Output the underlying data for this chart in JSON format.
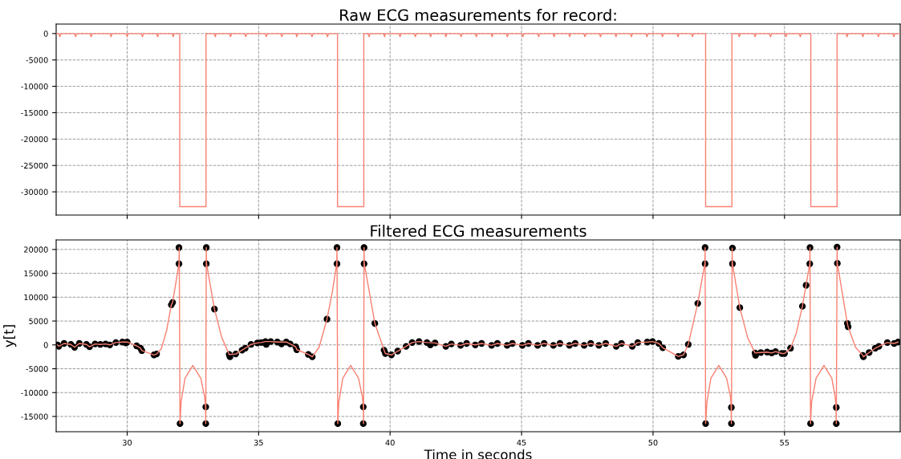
{
  "chart_data": [
    {
      "type": "line",
      "title": "Raw ECG measurements for record:",
      "xlim": [
        27.3,
        59.4
      ],
      "xticks": [
        30,
        35,
        40,
        45,
        50,
        55
      ],
      "ylim": [
        -34400,
        1800
      ],
      "yticks": [
        -30000,
        -25000,
        -20000,
        -15000,
        -10000,
        -5000,
        0
      ],
      "grid": true,
      "tick_labels": "y",
      "marker": "none",
      "series": [
        {
          "type": "line",
          "color": "#fa8072",
          "x": [
            27.3,
            27.4,
            27.44,
            27.48,
            28.0,
            28.04,
            28.08,
            28.59,
            28.63,
            28.67,
            29.35,
            29.39,
            29.43,
            29.96,
            30.0,
            30.04,
            30.54,
            30.58,
            30.62,
            31.12,
            31.16,
            31.2,
            31.71,
            31.75,
            31.79,
            32.0,
            32.0,
            33.0,
            33.0,
            33.31,
            33.35,
            33.39,
            33.89,
            33.93,
            33.97,
            34.47,
            34.51,
            34.55,
            35.25,
            35.29,
            35.33,
            35.84,
            35.88,
            35.92,
            36.41,
            36.45,
            36.49,
            36.99,
            37.03,
            37.07,
            37.58,
            37.62,
            37.66,
            38.0,
            38.0,
            39.0,
            39.0,
            39.16,
            39.2,
            39.24,
            39.75,
            39.79,
            39.83,
            40.34,
            40.38,
            40.42,
            40.92,
            40.96,
            41.0,
            41.5,
            41.54,
            41.58,
            42.08,
            42.12,
            42.16,
            42.66,
            42.7,
            42.74,
            43.24,
            43.28,
            43.32,
            43.84,
            43.88,
            43.92,
            44.42,
            44.46,
            44.5,
            45.01,
            45.05,
            45.09,
            45.61,
            45.65,
            45.69,
            46.2,
            46.24,
            46.28,
            46.79,
            46.83,
            46.87,
            47.37,
            47.41,
            47.45,
            47.96,
            48.0,
            48.04,
            48.55,
            48.59,
            48.63,
            49.14,
            49.18,
            49.22,
            49.73,
            49.77,
            49.81,
            50.32,
            50.36,
            50.4,
            50.91,
            50.95,
            50.99,
            51.46,
            51.5,
            51.54,
            52.0,
            52.0,
            53.0,
            53.0,
            53.24,
            53.28,
            53.32,
            53.84,
            53.88,
            53.92,
            54.43,
            54.47,
            54.51,
            55.02,
            55.06,
            55.1,
            55.56,
            55.6,
            55.64,
            56.0,
            56.0,
            57.0,
            57.0,
            57.34,
            57.38,
            57.42,
            57.94,
            57.98,
            58.02,
            58.53,
            58.57,
            58.61,
            59.12,
            59.16,
            59.2,
            59.4
          ],
          "values": [
            0,
            0,
            -600,
            0,
            0,
            -600,
            0,
            0,
            -600,
            0,
            0,
            -600,
            0,
            0,
            -600,
            0,
            0,
            -600,
            0,
            0,
            -600,
            0,
            0,
            -600,
            0,
            0,
            -32800,
            -32800,
            0,
            0,
            -600,
            0,
            0,
            -600,
            0,
            0,
            -600,
            0,
            0,
            -600,
            0,
            0,
            -600,
            0,
            0,
            -600,
            0,
            0,
            -600,
            0,
            0,
            -600,
            0,
            0,
            -32800,
            -32800,
            0,
            0,
            -600,
            0,
            0,
            -600,
            0,
            0,
            -600,
            0,
            0,
            -600,
            0,
            0,
            -600,
            0,
            0,
            -600,
            0,
            0,
            -600,
            0,
            0,
            -600,
            0,
            0,
            -600,
            0,
            0,
            -600,
            0,
            0,
            -600,
            0,
            0,
            -600,
            0,
            0,
            -600,
            0,
            0,
            -600,
            0,
            0,
            -600,
            0,
            0,
            -600,
            0,
            0,
            -600,
            0,
            0,
            -600,
            0,
            0,
            -600,
            0,
            0,
            -600,
            0,
            0,
            -600,
            0,
            0,
            -600,
            0,
            0,
            -32800,
            -32800,
            0,
            0,
            -600,
            0,
            0,
            -600,
            0,
            0,
            -600,
            0,
            0,
            -600,
            0,
            0,
            -600,
            0,
            0,
            -32800,
            -32800,
            0,
            0,
            -600,
            0,
            0,
            -600,
            0,
            0,
            -600,
            0,
            0,
            -600,
            0,
            0
          ]
        }
      ]
    },
    {
      "type": "line",
      "title": "Filtered ECG measurements",
      "xlabel": "Time in seconds",
      "ylabel": "y[t]",
      "xlim": [
        27.3,
        59.4
      ],
      "xticks": [
        30,
        35,
        40,
        45,
        50,
        55
      ],
      "ylim": [
        -18200,
        22000
      ],
      "yticks": [
        -15000,
        -10000,
        -5000,
        0,
        5000,
        10000,
        15000,
        20000
      ],
      "grid": true,
      "series": [
        {
          "type": "line",
          "color": "#fa8072",
          "marker": "none",
          "x": [
            27.35,
            27.4,
            27.6,
            27.86,
            28.0,
            28.18,
            28.45,
            28.57,
            28.78,
            28.98,
            29.18,
            29.34,
            29.57,
            29.82,
            30.0,
            30.36,
            30.51,
            30.56,
            31.02,
            31.12,
            31.3,
            31.5,
            31.68,
            31.73,
            31.97,
            31.98,
            32.01,
            32.05,
            32.2,
            32.5,
            32.8,
            32.95,
            32.98,
            32.99,
            33.01,
            33.02,
            33.32,
            33.6,
            33.88,
            34.13,
            34.37,
            34.49,
            34.71,
            34.95,
            35.1,
            35.26,
            35.46,
            35.71,
            36.05,
            36.2,
            36.41,
            36.45,
            36.89,
            37.04,
            37.3,
            37.6,
            37.8,
            37.97,
            37.98,
            38.01,
            38.05,
            38.2,
            38.5,
            38.8,
            38.95,
            38.98,
            38.99,
            39.01,
            39.02,
            39.42,
            39.77,
            39.82,
            40.05,
            40.29,
            40.61,
            40.84,
            41.1,
            41.4,
            41.71,
            42.12,
            42.33,
            42.68,
            42.91,
            43.24,
            43.48,
            43.86,
            44.08,
            44.45,
            44.65,
            45.03,
            45.26,
            45.61,
            45.86,
            46.21,
            46.46,
            46.82,
            47.04,
            47.38,
            47.63,
            47.94,
            48.2,
            48.6,
            48.8,
            49.21,
            49.42,
            49.78,
            49.98,
            50.22,
            50.37,
            50.96,
            51.16,
            51.34,
            51.7,
            51.97,
            51.98,
            52.0,
            52.05,
            52.2,
            52.5,
            52.8,
            52.95,
            52.97,
            52.98,
            53.01,
            53.02,
            53.3,
            53.6,
            53.88,
            54.1,
            54.34,
            54.51,
            54.66,
            54.9,
            55.0,
            55.23,
            55.45,
            55.68,
            55.82,
            55.96,
            55.97,
            55.99,
            56.03,
            56.2,
            56.5,
            56.8,
            56.93,
            56.96,
            56.97,
            57.0,
            57.01,
            57.39,
            57.42,
            57.7,
            57.98,
            58.0,
            58.22,
            58.45,
            58.59,
            58.91,
            59.17,
            59.32
          ],
          "values": [
            0,
            -300,
            300,
            100,
            -500,
            300,
            100,
            -400,
            200,
            100,
            200,
            0,
            500,
            600,
            600,
            -200,
            -700,
            -1200,
            -2100,
            -1900,
            -800,
            3000,
            8400,
            8900,
            17000,
            20400,
            -16500,
            -12000,
            -7000,
            -4300,
            -7000,
            -11000,
            -13000,
            -16500,
            20400,
            17000,
            7500,
            1500,
            -2000,
            -1900,
            -1100,
            -700,
            100,
            400,
            500,
            700,
            700,
            600,
            600,
            200,
            -400,
            -1000,
            -2000,
            -2500,
            -500,
            5400,
            11000,
            17000,
            20400,
            -16500,
            -12000,
            -7000,
            -4300,
            -7000,
            -11000,
            -13000,
            -16500,
            20400,
            17000,
            4500,
            -1100,
            -1800,
            -2100,
            -1300,
            -300,
            500,
            700,
            500,
            400,
            -300,
            200,
            -100,
            300,
            0,
            300,
            -100,
            300,
            -100,
            300,
            -100,
            300,
            -100,
            300,
            -100,
            300,
            -100,
            300,
            -100,
            300,
            -100,
            300,
            -300,
            300,
            -300,
            500,
            600,
            700,
            300,
            -600,
            -2400,
            -2100,
            100,
            8700,
            17000,
            20400,
            -16500,
            -12000,
            -7000,
            -4300,
            -7000,
            -11000,
            -13100,
            -16500,
            20300,
            17000,
            7800,
            1500,
            -1700,
            -1600,
            -1500,
            -1700,
            -1400,
            -1800,
            -1800,
            -700,
            2500,
            8100,
            12500,
            17000,
            20400,
            -16500,
            -12000,
            -7000,
            -4300,
            -7000,
            -11000,
            -13100,
            -16500,
            20500,
            17100,
            4500,
            3800,
            -500,
            -2200,
            -2500,
            -1600,
            -700,
            -300,
            500,
            300,
            600
          ]
        },
        {
          "type": "scatter",
          "color": "#000000",
          "marker": "circle",
          "x": [
            27.35,
            27.4,
            27.6,
            27.86,
            28.0,
            28.18,
            28.45,
            28.57,
            28.78,
            28.98,
            29.18,
            29.34,
            29.57,
            29.82,
            29.95,
            30.0,
            30.36,
            30.51,
            30.56,
            31.02,
            31.12,
            31.68,
            31.73,
            31.97,
            31.97,
            32.01,
            32.99,
            32.99,
            33.01,
            33.01,
            33.32,
            33.88,
            33.91,
            34.13,
            34.37,
            34.49,
            34.71,
            34.95,
            35.1,
            35.26,
            35.29,
            35.46,
            35.71,
            35.87,
            36.05,
            36.2,
            36.41,
            36.45,
            36.89,
            37.04,
            37.6,
            37.98,
            37.98,
            38.01,
            38.98,
            38.98,
            39.01,
            39.01,
            39.42,
            39.77,
            39.82,
            40.05,
            40.29,
            40.61,
            40.84,
            41.1,
            41.4,
            41.53,
            41.71,
            42.12,
            42.33,
            42.68,
            42.91,
            43.24,
            43.48,
            43.86,
            44.08,
            44.45,
            44.65,
            45.03,
            45.26,
            45.61,
            45.86,
            46.21,
            46.46,
            46.82,
            47.04,
            47.38,
            47.63,
            47.94,
            48.2,
            48.6,
            48.8,
            49.21,
            49.42,
            49.78,
            49.98,
            50.22,
            50.37,
            50.96,
            51.16,
            51.34,
            51.7,
            51.98,
            51.98,
            52.0,
            52.98,
            52.98,
            53.02,
            53.02,
            53.3,
            53.88,
            53.9,
            54.1,
            54.34,
            54.51,
            54.66,
            54.9,
            55.0,
            55.23,
            55.68,
            55.82,
            55.96,
            55.97,
            55.99,
            56.97,
            56.97,
            57.0,
            57.01,
            57.39,
            57.42,
            57.98,
            58.0,
            58.22,
            58.45,
            58.59,
            58.91,
            59.17,
            59.32
          ],
          "values": [
            0,
            -300,
            300,
            100,
            -500,
            300,
            100,
            -400,
            200,
            100,
            200,
            0,
            500,
            600,
            400,
            600,
            -200,
            -700,
            -1200,
            -2100,
            -1900,
            8400,
            8900,
            17000,
            20400,
            -16500,
            -13000,
            -16500,
            20400,
            17000,
            7500,
            -2000,
            -2500,
            -1900,
            -1100,
            -700,
            100,
            400,
            500,
            700,
            100,
            700,
            600,
            200,
            600,
            200,
            -400,
            -1000,
            -2000,
            -2500,
            5400,
            17000,
            20400,
            -16500,
            -13000,
            -16500,
            20400,
            17000,
            4500,
            -1100,
            -1800,
            -2100,
            -1300,
            -300,
            500,
            700,
            500,
            0,
            400,
            -300,
            200,
            -100,
            300,
            0,
            300,
            -100,
            300,
            -100,
            300,
            -100,
            300,
            -100,
            300,
            -100,
            300,
            -100,
            300,
            -100,
            300,
            -100,
            300,
            -300,
            300,
            -300,
            500,
            600,
            700,
            300,
            -600,
            -2400,
            -2100,
            100,
            8700,
            17000,
            20400,
            -16500,
            -13100,
            -16500,
            20300,
            17000,
            7800,
            -1700,
            -2200,
            -1600,
            -1500,
            -1700,
            -1400,
            -1800,
            -1800,
            -700,
            8100,
            12500,
            17000,
            20400,
            -16500,
            -13100,
            -16500,
            20500,
            17100,
            4500,
            3800,
            -2200,
            -2500,
            -1600,
            -700,
            -300,
            500,
            300,
            600
          ]
        }
      ]
    }
  ]
}
